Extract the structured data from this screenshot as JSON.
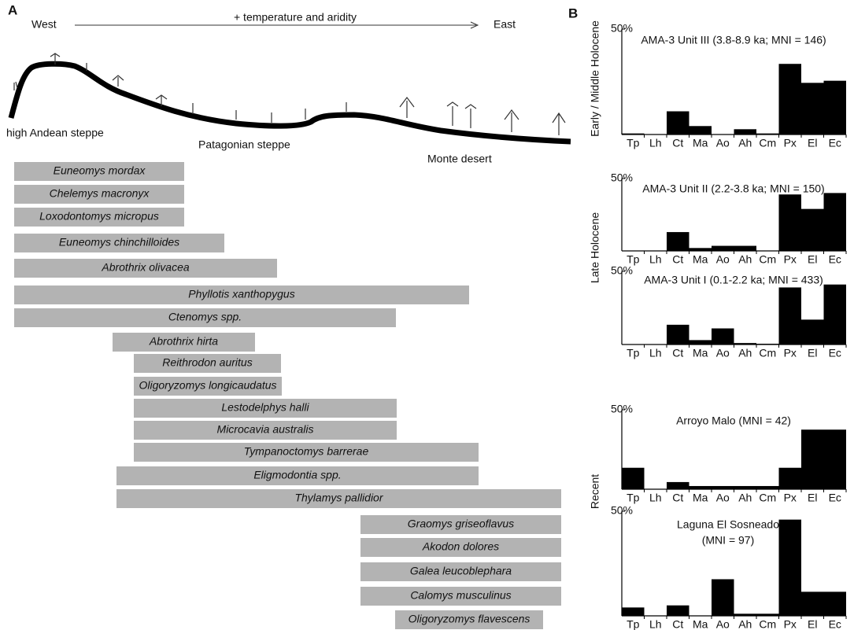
{
  "panel_a": {
    "label": "A",
    "west": "West",
    "east": "East",
    "gradient": "+ temperature and aridity",
    "zones": [
      "high Andean steppe",
      "Patagonian steppe",
      "Monte desert"
    ],
    "species": [
      "Euneomys mordax",
      "Chelemys macronyx",
      "Loxodontomys micropus",
      "Euneomys chinchilloides",
      "Abrothrix olivacea",
      "Phyllotis xanthopygus",
      "Ctenomys spp.",
      "Abrothrix hirta",
      "Reithrodon auritus",
      "Oligoryzomys longicaudatus",
      "Lestodelphys halli",
      "Microcavia australis",
      "Tympanoctomys barrerae",
      "Eligmodontia spp.",
      "Thylamys pallidior",
      "Graomys griseoflavus",
      "Akodon dolores",
      "Galea leucoblephara",
      "Calomys musculinus",
      "Oligoryzomys flavescens"
    ]
  },
  "panel_b": {
    "label": "B",
    "periods": [
      "Early / Middle Holocene",
      "Late Holocene",
      "Recent"
    ]
  },
  "chart_data": [
    {
      "type": "bar",
      "title": "AMA-3 Unit III (3.8-8.9 ka; MNI = 146)",
      "categories": [
        "Tp",
        "Lh",
        "Ct",
        "Ma",
        "Ao",
        "Ah",
        "Cm",
        "Px",
        "El",
        "Ec"
      ],
      "values": [
        0.5,
        0,
        11,
        4,
        0,
        2.5,
        0.5,
        33.5,
        24.5,
        25.5
      ],
      "color": "#000000",
      "ylim": [
        0,
        50
      ],
      "yticks": [
        {
          "value": 50,
          "label": "50%"
        }
      ]
    },
    {
      "type": "bar",
      "title": "AMA-3 Unit II (2.2-3.8 ka; MNI = 150)",
      "categories": [
        "Tp",
        "Lh",
        "Ct",
        "Ma",
        "Ao",
        "Ah",
        "Cm",
        "Px",
        "El",
        "Ec"
      ],
      "values": [
        0,
        0,
        13,
        2,
        3.5,
        3.5,
        0,
        39,
        29,
        40
      ],
      "color": "#000000",
      "ylim": [
        0,
        50
      ],
      "yticks": [
        {
          "value": 50,
          "label": "50%"
        }
      ]
    },
    {
      "type": "bar",
      "title": "AMA-3 Unit I (0.1-2.2 ka; MNI = 433)",
      "categories": [
        "Tp",
        "Lh",
        "Ct",
        "Ma",
        "Ao",
        "Ah",
        "Cm",
        "Px",
        "El",
        "Ec"
      ],
      "values": [
        0,
        0,
        13.5,
        3,
        11,
        1,
        0.5,
        39,
        17,
        41
      ],
      "color": "#000000",
      "ylim": [
        0,
        50
      ],
      "yticks": [
        {
          "value": 50,
          "label": "50%"
        }
      ]
    },
    {
      "type": "bar",
      "title": "Arroyo Malo (MNI = 42)",
      "categories": [
        "Tp",
        "Lh",
        "Ct",
        "Ma",
        "Ao",
        "Ah",
        "Cm",
        "Px",
        "El",
        "Ec"
      ],
      "values": [
        13.5,
        0,
        4.5,
        2,
        2,
        2,
        2,
        13.5,
        37.5,
        37.5
      ],
      "color": "#000000",
      "ylim": [
        0,
        50
      ],
      "yticks": [
        {
          "value": 50,
          "label": "50%"
        }
      ]
    },
    {
      "type": "bar",
      "title": [
        "Laguna El Sosneado",
        "(MNI = 97)"
      ],
      "categories": [
        "Tp",
        "Lh",
        "Ct",
        "Ma",
        "Ao",
        "Ah",
        "Cm",
        "Px",
        "El",
        "Ec"
      ],
      "values": [
        4,
        0,
        5,
        0,
        17.5,
        1,
        1,
        46,
        11.5,
        11.5
      ],
      "color": "#000000",
      "ylim": [
        0,
        50
      ],
      "yticks": [
        {
          "value": 50,
          "label": "50%"
        }
      ]
    }
  ]
}
